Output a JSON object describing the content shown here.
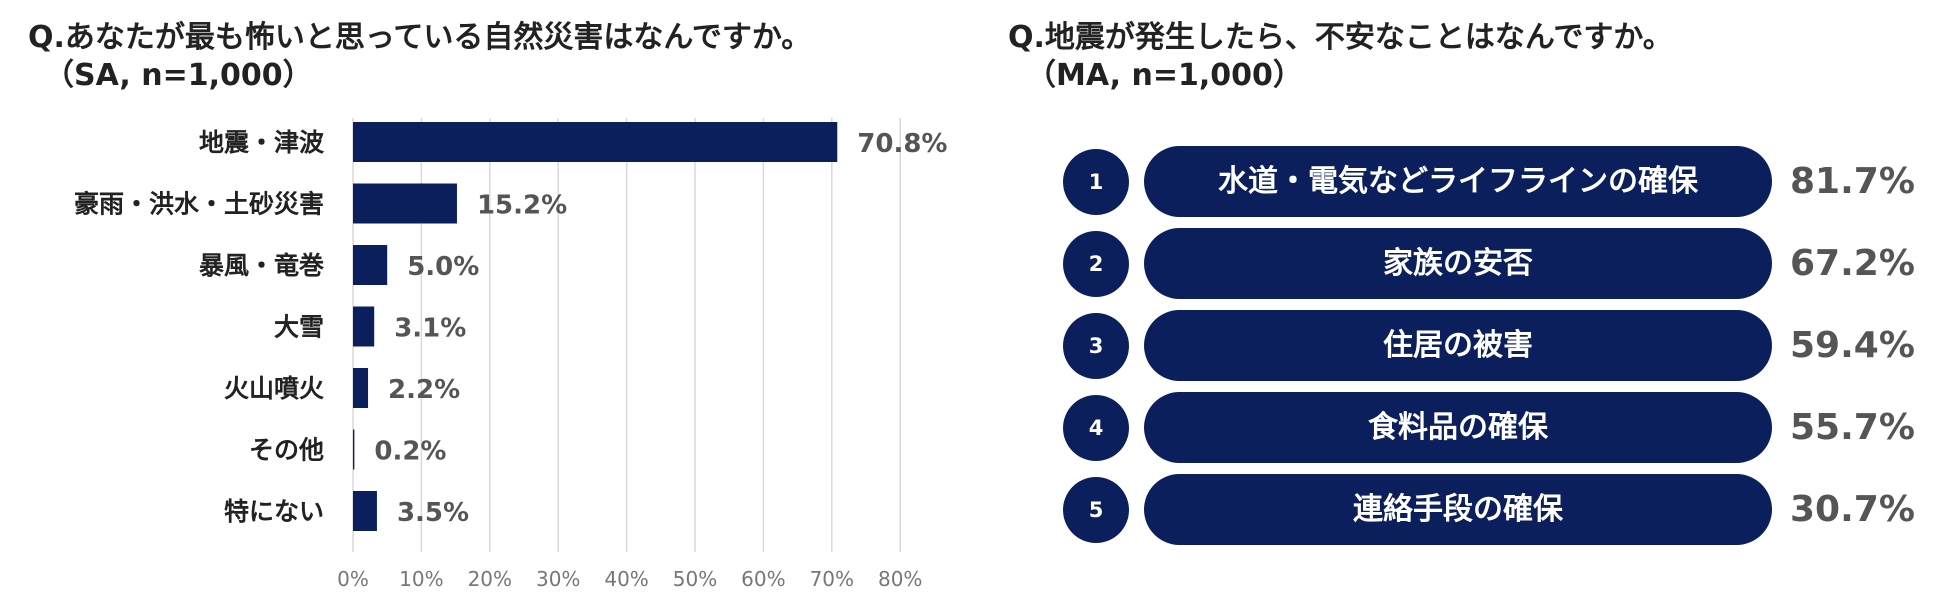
{
  "left": {
    "title": "Q.あなたが最も怖いと思っている自然災害はなんですか。",
    "subtitle": "（SA, n=1,000）"
  },
  "right": {
    "title": "Q.地震が発生したら、不安なことはなんですか。",
    "subtitle": "（MA, n=1,000）"
  },
  "chart_data": [
    {
      "type": "bar",
      "orientation": "horizontal",
      "title": "Q.あなたが最も怖いと思っている自然災害はなんですか。",
      "subtitle": "（SA, n=1,000）",
      "categories": [
        "地震・津波",
        "豪雨・洪水・土砂災害",
        "暴風・竜巻",
        "大雪",
        "火山噴火",
        "その他",
        "特にない"
      ],
      "values": [
        70.8,
        15.2,
        5.0,
        3.1,
        2.2,
        0.2,
        3.5
      ],
      "value_labels": [
        "70.8%",
        "15.2%",
        "5.0%",
        "3.1%",
        "2.2%",
        "0.2%",
        "3.5%"
      ],
      "xlim": [
        0,
        80
      ],
      "ticks": [
        "0%",
        "10%",
        "20%",
        "30%",
        "40%",
        "50%",
        "60%",
        "70%",
        "80%"
      ],
      "grid": true,
      "bar_color": "#0b1f5c"
    },
    {
      "type": "table",
      "title": "Q.地震が発生したら、不安なことはなんですか。",
      "subtitle": "（MA, n=1,000）",
      "rows": [
        {
          "rank": "1",
          "label": "水道・電気などライフラインの確保",
          "value": 81.7,
          "value_label": "81.7%"
        },
        {
          "rank": "2",
          "label": "家族の安否",
          "value": 67.2,
          "value_label": "67.2%"
        },
        {
          "rank": "3",
          "label": "住居の被害",
          "value": 59.4,
          "value_label": "59.4%"
        },
        {
          "rank": "4",
          "label": "食料品の確保",
          "value": 55.7,
          "value_label": "55.7%"
        },
        {
          "rank": "5",
          "label": "連絡手段の確保",
          "value": 30.7,
          "value_label": "30.7%"
        }
      ]
    }
  ],
  "colors": {
    "accent": "#0b1f5c",
    "grid": "#d9d9d9",
    "value_text": "#555555",
    "tick_text": "#777777"
  }
}
